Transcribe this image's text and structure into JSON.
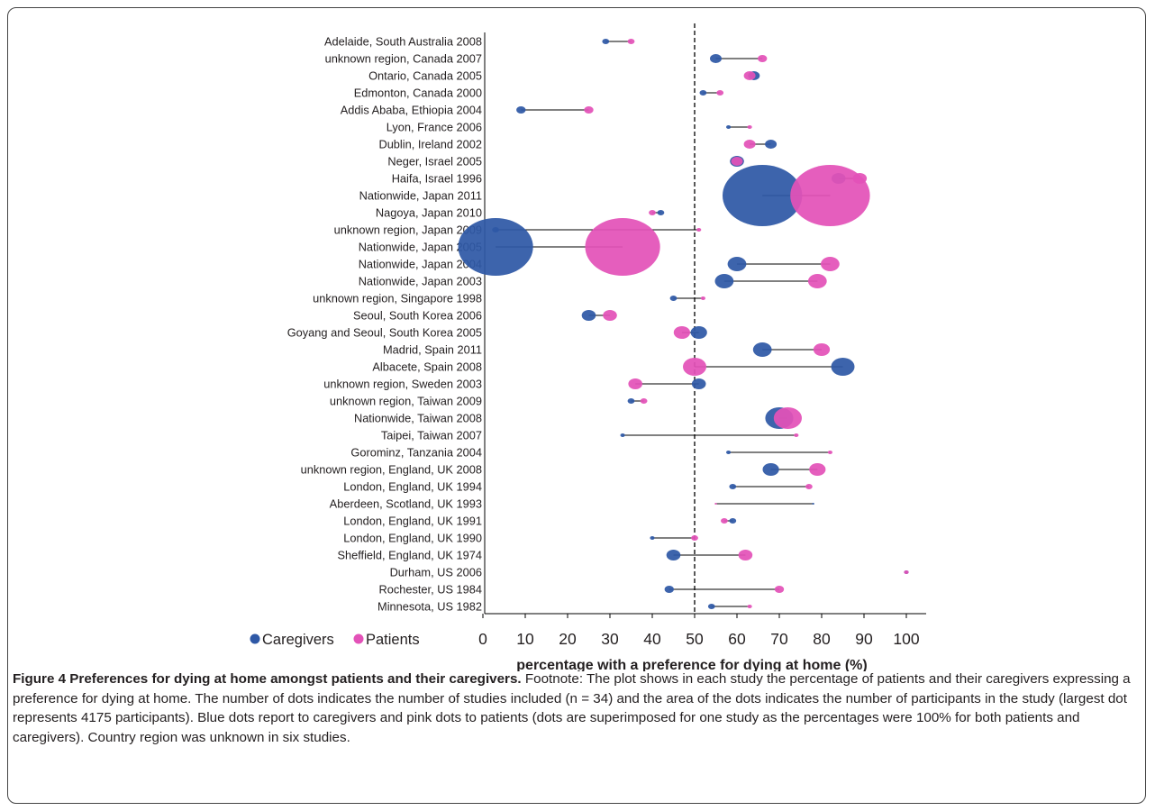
{
  "chart_data": {
    "type": "scatter",
    "subtype": "dumbbell",
    "xlabel": "percentage with a preference for dying at home (%)",
    "xlim": [
      0,
      100
    ],
    "xticks": [
      0,
      10,
      20,
      30,
      40,
      50,
      60,
      70,
      80,
      90,
      100
    ],
    "reference_line_x": 50,
    "legend": {
      "position": "bottom-left"
    },
    "series": [
      {
        "name": "Caregivers",
        "color": "#2e58a6"
      },
      {
        "name": "Patients",
        "color": "#e352b8"
      }
    ],
    "studies": [
      {
        "label": "Adelaide, South Australia 2008",
        "caregivers": 29,
        "caregivers_size": 3,
        "patients": 35,
        "patients_size": 3
      },
      {
        "label": "unknown region, Canada 2007",
        "caregivers": 55,
        "caregivers_size": 5,
        "patients": 66,
        "patients_size": 4
      },
      {
        "label": "Ontario, Canada 2005",
        "caregivers": 64,
        "caregivers_size": 5,
        "patients": 63,
        "patients_size": 5
      },
      {
        "label": "Edmonton, Canada 2000",
        "caregivers": 52,
        "caregivers_size": 3,
        "patients": 56,
        "patients_size": 3
      },
      {
        "label": "Addis Ababa, Ethiopia 2004",
        "caregivers": 9,
        "caregivers_size": 4,
        "patients": 25,
        "patients_size": 4
      },
      {
        "label": "Lyon, France 2006",
        "caregivers": 58,
        "caregivers_size": 2,
        "patients": 63,
        "patients_size": 2
      },
      {
        "label": "Dublin, Ireland 2002",
        "caregivers": 68,
        "caregivers_size": 5,
        "patients": 63,
        "patients_size": 5
      },
      {
        "label": "Neger, Israel 2005",
        "caregivers": 60,
        "caregivers_size": 6,
        "patients": 60,
        "patients_size": 5
      },
      {
        "label": "Haifa, Israel 1996",
        "caregivers": 84,
        "caregivers_size": 6,
        "patients": 89,
        "patients_size": 6
      },
      {
        "label": "Nationwide, Japan 2011",
        "caregivers": 66,
        "caregivers_size": 34,
        "patients": 82,
        "patients_size": 34
      },
      {
        "label": "Nagoya, Japan 2010",
        "caregivers": 42,
        "caregivers_size": 3,
        "patients": 40,
        "patients_size": 3
      },
      {
        "label": "unknown region, Japan 2009",
        "caregivers": 3,
        "caregivers_size": 3,
        "patients": 51,
        "patients_size": 2
      },
      {
        "label": "Nationwide, Japan 2005",
        "caregivers": 3,
        "caregivers_size": 32,
        "patients": 33,
        "patients_size": 32
      },
      {
        "label": "Nationwide, Japan 2004",
        "caregivers": 60,
        "caregivers_size": 8,
        "patients": 82,
        "patients_size": 8
      },
      {
        "label": "Nationwide, Japan 2003",
        "caregivers": 57,
        "caregivers_size": 8,
        "patients": 79,
        "patients_size": 8
      },
      {
        "label": "unknown region, Singapore 1998",
        "caregivers": 45,
        "caregivers_size": 3,
        "patients": 52,
        "patients_size": 2
      },
      {
        "label": "Seoul, South Korea 2006",
        "caregivers": 25,
        "caregivers_size": 6,
        "patients": 30,
        "patients_size": 6
      },
      {
        "label": "Goyang and Seoul, South Korea 2005",
        "caregivers": 51,
        "caregivers_size": 7,
        "patients": 47,
        "patients_size": 7
      },
      {
        "label": "Madrid, Spain 2011",
        "caregivers": 66,
        "caregivers_size": 8,
        "patients": 80,
        "patients_size": 7
      },
      {
        "label": "Albacete, Spain 2008",
        "caregivers": 85,
        "caregivers_size": 10,
        "patients": 50,
        "patients_size": 10
      },
      {
        "label": "unknown region, Sweden 2003",
        "caregivers": 51,
        "caregivers_size": 6,
        "patients": 36,
        "patients_size": 6
      },
      {
        "label": "unknown region, Taiwan 2009",
        "caregivers": 35,
        "caregivers_size": 3,
        "patients": 38,
        "patients_size": 3
      },
      {
        "label": "Nationwide, Taiwan 2008",
        "caregivers": 70,
        "caregivers_size": 12,
        "patients": 72,
        "patients_size": 12
      },
      {
        "label": "Taipei, Taiwan 2007",
        "caregivers": 33,
        "caregivers_size": 2,
        "patients": 74,
        "patients_size": 2
      },
      {
        "label": "Gorominz, Tanzania 2004",
        "caregivers": 58,
        "caregivers_size": 2,
        "patients": 82,
        "patients_size": 2
      },
      {
        "label": "unknown region, England, UK 2008",
        "caregivers": 68,
        "caregivers_size": 7,
        "patients": 79,
        "patients_size": 7
      },
      {
        "label": "London, England, UK 1994",
        "caregivers": 59,
        "caregivers_size": 3,
        "patients": 77,
        "patients_size": 3
      },
      {
        "label": "Aberdeen, Scotland, UK 1993",
        "caregivers": 78,
        "caregivers_size": 1,
        "patients": 55,
        "patients_size": 1
      },
      {
        "label": "London, England, UK 1991",
        "caregivers": 59,
        "caregivers_size": 3,
        "patients": 57,
        "patients_size": 3
      },
      {
        "label": "London, England, UK 1990",
        "caregivers": 40,
        "caregivers_size": 2,
        "patients": 50,
        "patients_size": 3
      },
      {
        "label": "Sheffield, England, UK 1974",
        "caregivers": 45,
        "caregivers_size": 6,
        "patients": 62,
        "patients_size": 6
      },
      {
        "label": "Durham, US 2006",
        "caregivers": 100,
        "caregivers_size": 2,
        "patients": 100,
        "patients_size": 2
      },
      {
        "label": "Rochester, US 1984",
        "caregivers": 44,
        "caregivers_size": 4,
        "patients": 70,
        "patients_size": 4
      },
      {
        "label": "Minnesota, US 1982",
        "caregivers": 54,
        "caregivers_size": 3,
        "patients": 63,
        "patients_size": 2
      }
    ]
  },
  "caption": {
    "title": "Figure 4 Preferences for dying at home amongst patients and their caregivers.",
    "body": "Footnote: The plot shows in each study the percentage of patients and their caregivers expressing a preference for dying at home. The number of dots indicates the number of studies included (n = 34) and the area of the dots indicates the number of participants in the study (largest dot represents 4175 participants). Blue dots report to caregivers and pink dots to patients (dots are superimposed for one study as the percentages were 100% for both patients and caregivers). Country region was unknown in six studies."
  }
}
